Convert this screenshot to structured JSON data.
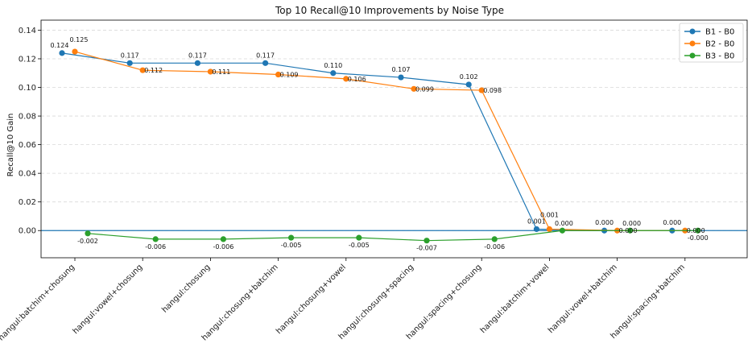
{
  "chart_data": {
    "type": "line",
    "title": "Top 10 Recall@10 Improvements by Noise Type",
    "xlabel": "",
    "ylabel": "Recall@10 Gain",
    "ylim": [
      -0.019,
      0.147
    ],
    "yticks": [
      0.0,
      0.02,
      0.04,
      0.06,
      0.08,
      0.1,
      0.12,
      0.14
    ],
    "ytick_labels": [
      "0.00",
      "0.02",
      "0.04",
      "0.06",
      "0.08",
      "0.10",
      "0.12",
      "0.14"
    ],
    "grid": true,
    "legend_position": "top-right",
    "reference_line": 0,
    "categories": [
      "hangul:batchim+chosung",
      "hangul:vowel+chosung",
      "hangul:chosung",
      "hangul:chosung+batchim",
      "hangul:chosung+vowel",
      "hangul:chosung+spacing",
      "hangul:spacing+chosung",
      "hangul:batchim+vowel",
      "hangul:vowel+batchim",
      "hangul:spacing+batchim"
    ],
    "series": [
      {
        "name": "B1 - B0",
        "color": "#1f77b4",
        "values": [
          0.124,
          0.117,
          0.117,
          0.117,
          0.11,
          0.107,
          0.102,
          0.001,
          0.0,
          0.0
        ],
        "labels": [
          "0.124",
          "0.117",
          "0.117",
          "0.117",
          "0.110",
          "0.107",
          "0.102",
          "0.001",
          "0.000",
          "0.000"
        ]
      },
      {
        "name": "B2 - B0",
        "color": "#ff7f0e",
        "values": [
          0.125,
          0.112,
          0.111,
          0.109,
          0.106,
          0.099,
          0.098,
          0.001,
          0.0,
          0.0
        ],
        "labels": [
          "0.125",
          "0.112",
          "0.111",
          "0.109",
          "0.106",
          "0.099",
          "0.098",
          "0.001",
          "0.000",
          "0.000"
        ]
      },
      {
        "name": "B3 - B0",
        "color": "#2ca02c",
        "values": [
          -0.002,
          -0.006,
          -0.006,
          -0.005,
          -0.005,
          -0.007,
          -0.006,
          0.0,
          0.0,
          -0.0
        ],
        "labels": [
          "-0.002",
          "-0.006",
          "-0.006",
          "-0.005",
          "-0.005",
          "-0.007",
          "-0.006",
          "0.000",
          "0.000",
          "-0.000"
        ]
      }
    ]
  }
}
